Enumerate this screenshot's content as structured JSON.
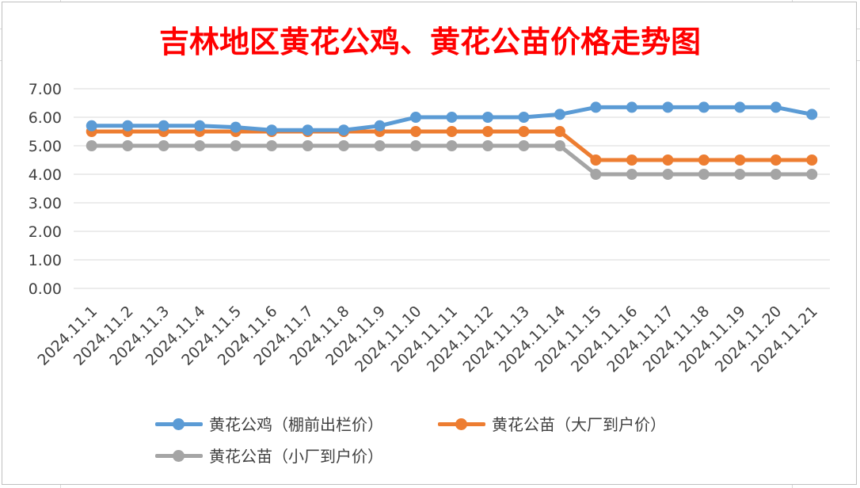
{
  "chart_data": {
    "type": "line",
    "title": "吉林地区黄花公鸡、黄花公苗价格走势图",
    "xlabel": "",
    "ylabel": "",
    "ylim": [
      0,
      7
    ],
    "y_ticks": [
      "0.00",
      "1.00",
      "2.00",
      "3.00",
      "4.00",
      "5.00",
      "6.00",
      "7.00"
    ],
    "grid": "horizontal",
    "legend_position": "bottom",
    "categories": [
      "2024.11.1",
      "2024.11.2",
      "2024.11.3",
      "2024.11.4",
      "2024.11.5",
      "2024.11.6",
      "2024.11.7",
      "2024.11.8",
      "2024.11.9",
      "2024.11.10",
      "2024.11.11",
      "2024.11.12",
      "2024.11.13",
      "2024.11.14",
      "2024.11.15",
      "2024.11.16",
      "2024.11.17",
      "2024.11.18",
      "2024.11.19",
      "2024.11.20",
      "2024.11.21"
    ],
    "series": [
      {
        "name": "黄花公鸡（棚前出栏价）",
        "color": "#5b9bd5",
        "values": [
          5.7,
          5.7,
          5.7,
          5.7,
          5.65,
          5.55,
          5.55,
          5.55,
          5.7,
          6.0,
          6.0,
          6.0,
          6.0,
          6.1,
          6.35,
          6.35,
          6.35,
          6.35,
          6.35,
          6.35,
          6.1
        ]
      },
      {
        "name": "黄花公苗（大厂到户价）",
        "color": "#ed7d31",
        "values": [
          5.5,
          5.5,
          5.5,
          5.5,
          5.5,
          5.5,
          5.5,
          5.5,
          5.5,
          5.5,
          5.5,
          5.5,
          5.5,
          5.5,
          4.5,
          4.5,
          4.5,
          4.5,
          4.5,
          4.5,
          4.5
        ]
      },
      {
        "name": "黄花公苗（小厂到户价）",
        "color": "#a5a5a5",
        "values": [
          5.0,
          5.0,
          5.0,
          5.0,
          5.0,
          5.0,
          5.0,
          5.0,
          5.0,
          5.0,
          5.0,
          5.0,
          5.0,
          5.0,
          4.0,
          4.0,
          4.0,
          4.0,
          4.0,
          4.0,
          4.0
        ]
      }
    ]
  }
}
